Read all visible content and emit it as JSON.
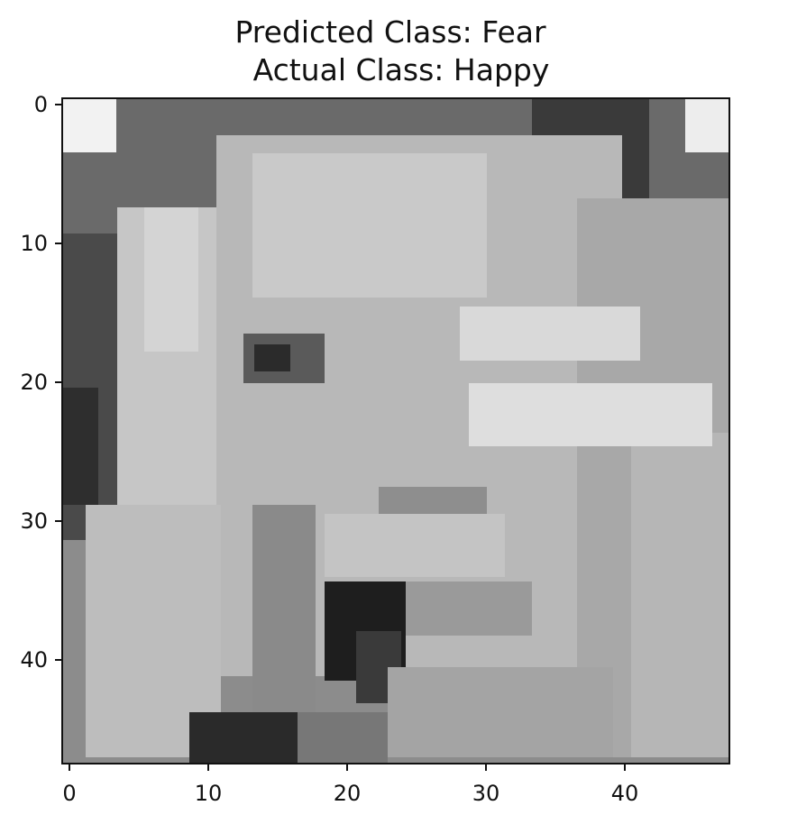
{
  "figure": {
    "title_line1": "Predicted Class: Fear",
    "title_line2": "Actual Class: Happy"
  },
  "image": {
    "description_grid": "48x48 grayscale face image",
    "colormap": "gray"
  },
  "axes": {
    "x_ticks": [
      "0",
      "10",
      "20",
      "30",
      "40"
    ],
    "y_ticks": [
      "0",
      "10",
      "20",
      "30",
      "40"
    ],
    "x_range": [
      0,
      48
    ],
    "y_range": [
      0,
      48
    ]
  }
}
